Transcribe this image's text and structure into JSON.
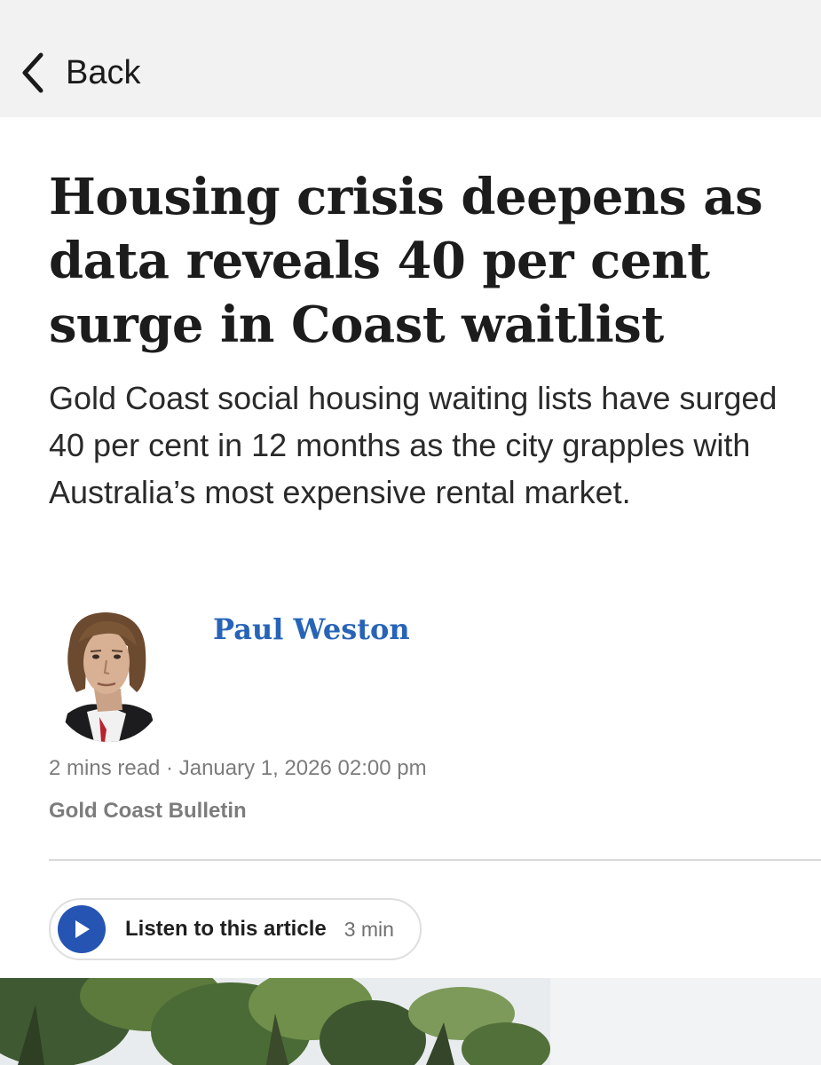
{
  "nav": {
    "back_label": "Back",
    "back_icon": "chevron-left-icon"
  },
  "article": {
    "headline": "Housing crisis deepens as data reveals 40 per cent surge in Coast waitlist",
    "standfirst": "Gold Coast social housing waiting lists have surged 40 per cent in 12 months as the city grapples with Australia’s most expensive rental market.",
    "author": "Paul Weston",
    "meta": "2 mins read · January 1, 2026 02:00 pm",
    "publication": "Gold Coast Bulletin"
  },
  "audio": {
    "label": "Listen to this article",
    "duration": "3 min",
    "icon": "play-icon"
  },
  "colors": {
    "accent_blue": "#2764b8",
    "play_blue": "#2554b3",
    "topbar_bg": "#f2f2f2",
    "meta_gray": "#7c7c7c"
  }
}
